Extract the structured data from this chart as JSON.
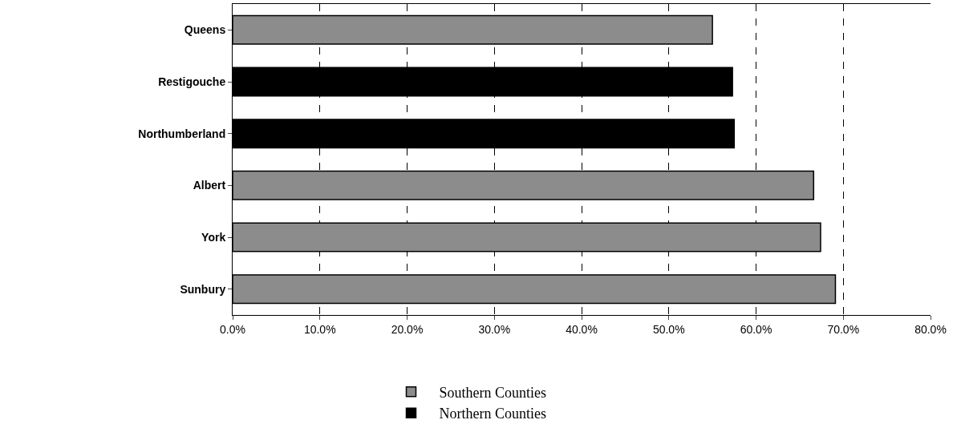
{
  "chart_data": {
    "type": "bar",
    "orientation": "horizontal",
    "categories": [
      "Queens",
      "Restigouche",
      "Northumberland",
      "Albert",
      "York",
      "Sunbury"
    ],
    "series": [
      {
        "name": "Southern Counties",
        "color": "#8c8c8c",
        "values": [
          55.0,
          null,
          null,
          66.6,
          67.4,
          69.1
        ]
      },
      {
        "name": "Northern Counties",
        "color": "#000000",
        "values": [
          null,
          57.3,
          57.5,
          null,
          null,
          null
        ]
      }
    ],
    "xlim": [
      0,
      80
    ],
    "xticks": [
      {
        "value": 0,
        "label": "0.0%"
      },
      {
        "value": 10,
        "label": "10.0%"
      },
      {
        "value": 20,
        "label": "20.0%"
      },
      {
        "value": 30,
        "label": "30.0%"
      },
      {
        "value": 40,
        "label": "40.0%"
      },
      {
        "value": 50,
        "label": "50.0%"
      },
      {
        "value": 60,
        "label": "60.0%"
      },
      {
        "value": 70,
        "label": "70.0%"
      },
      {
        "value": 80,
        "label": "80.0%"
      }
    ],
    "grid": "x",
    "legend": "bottom"
  }
}
